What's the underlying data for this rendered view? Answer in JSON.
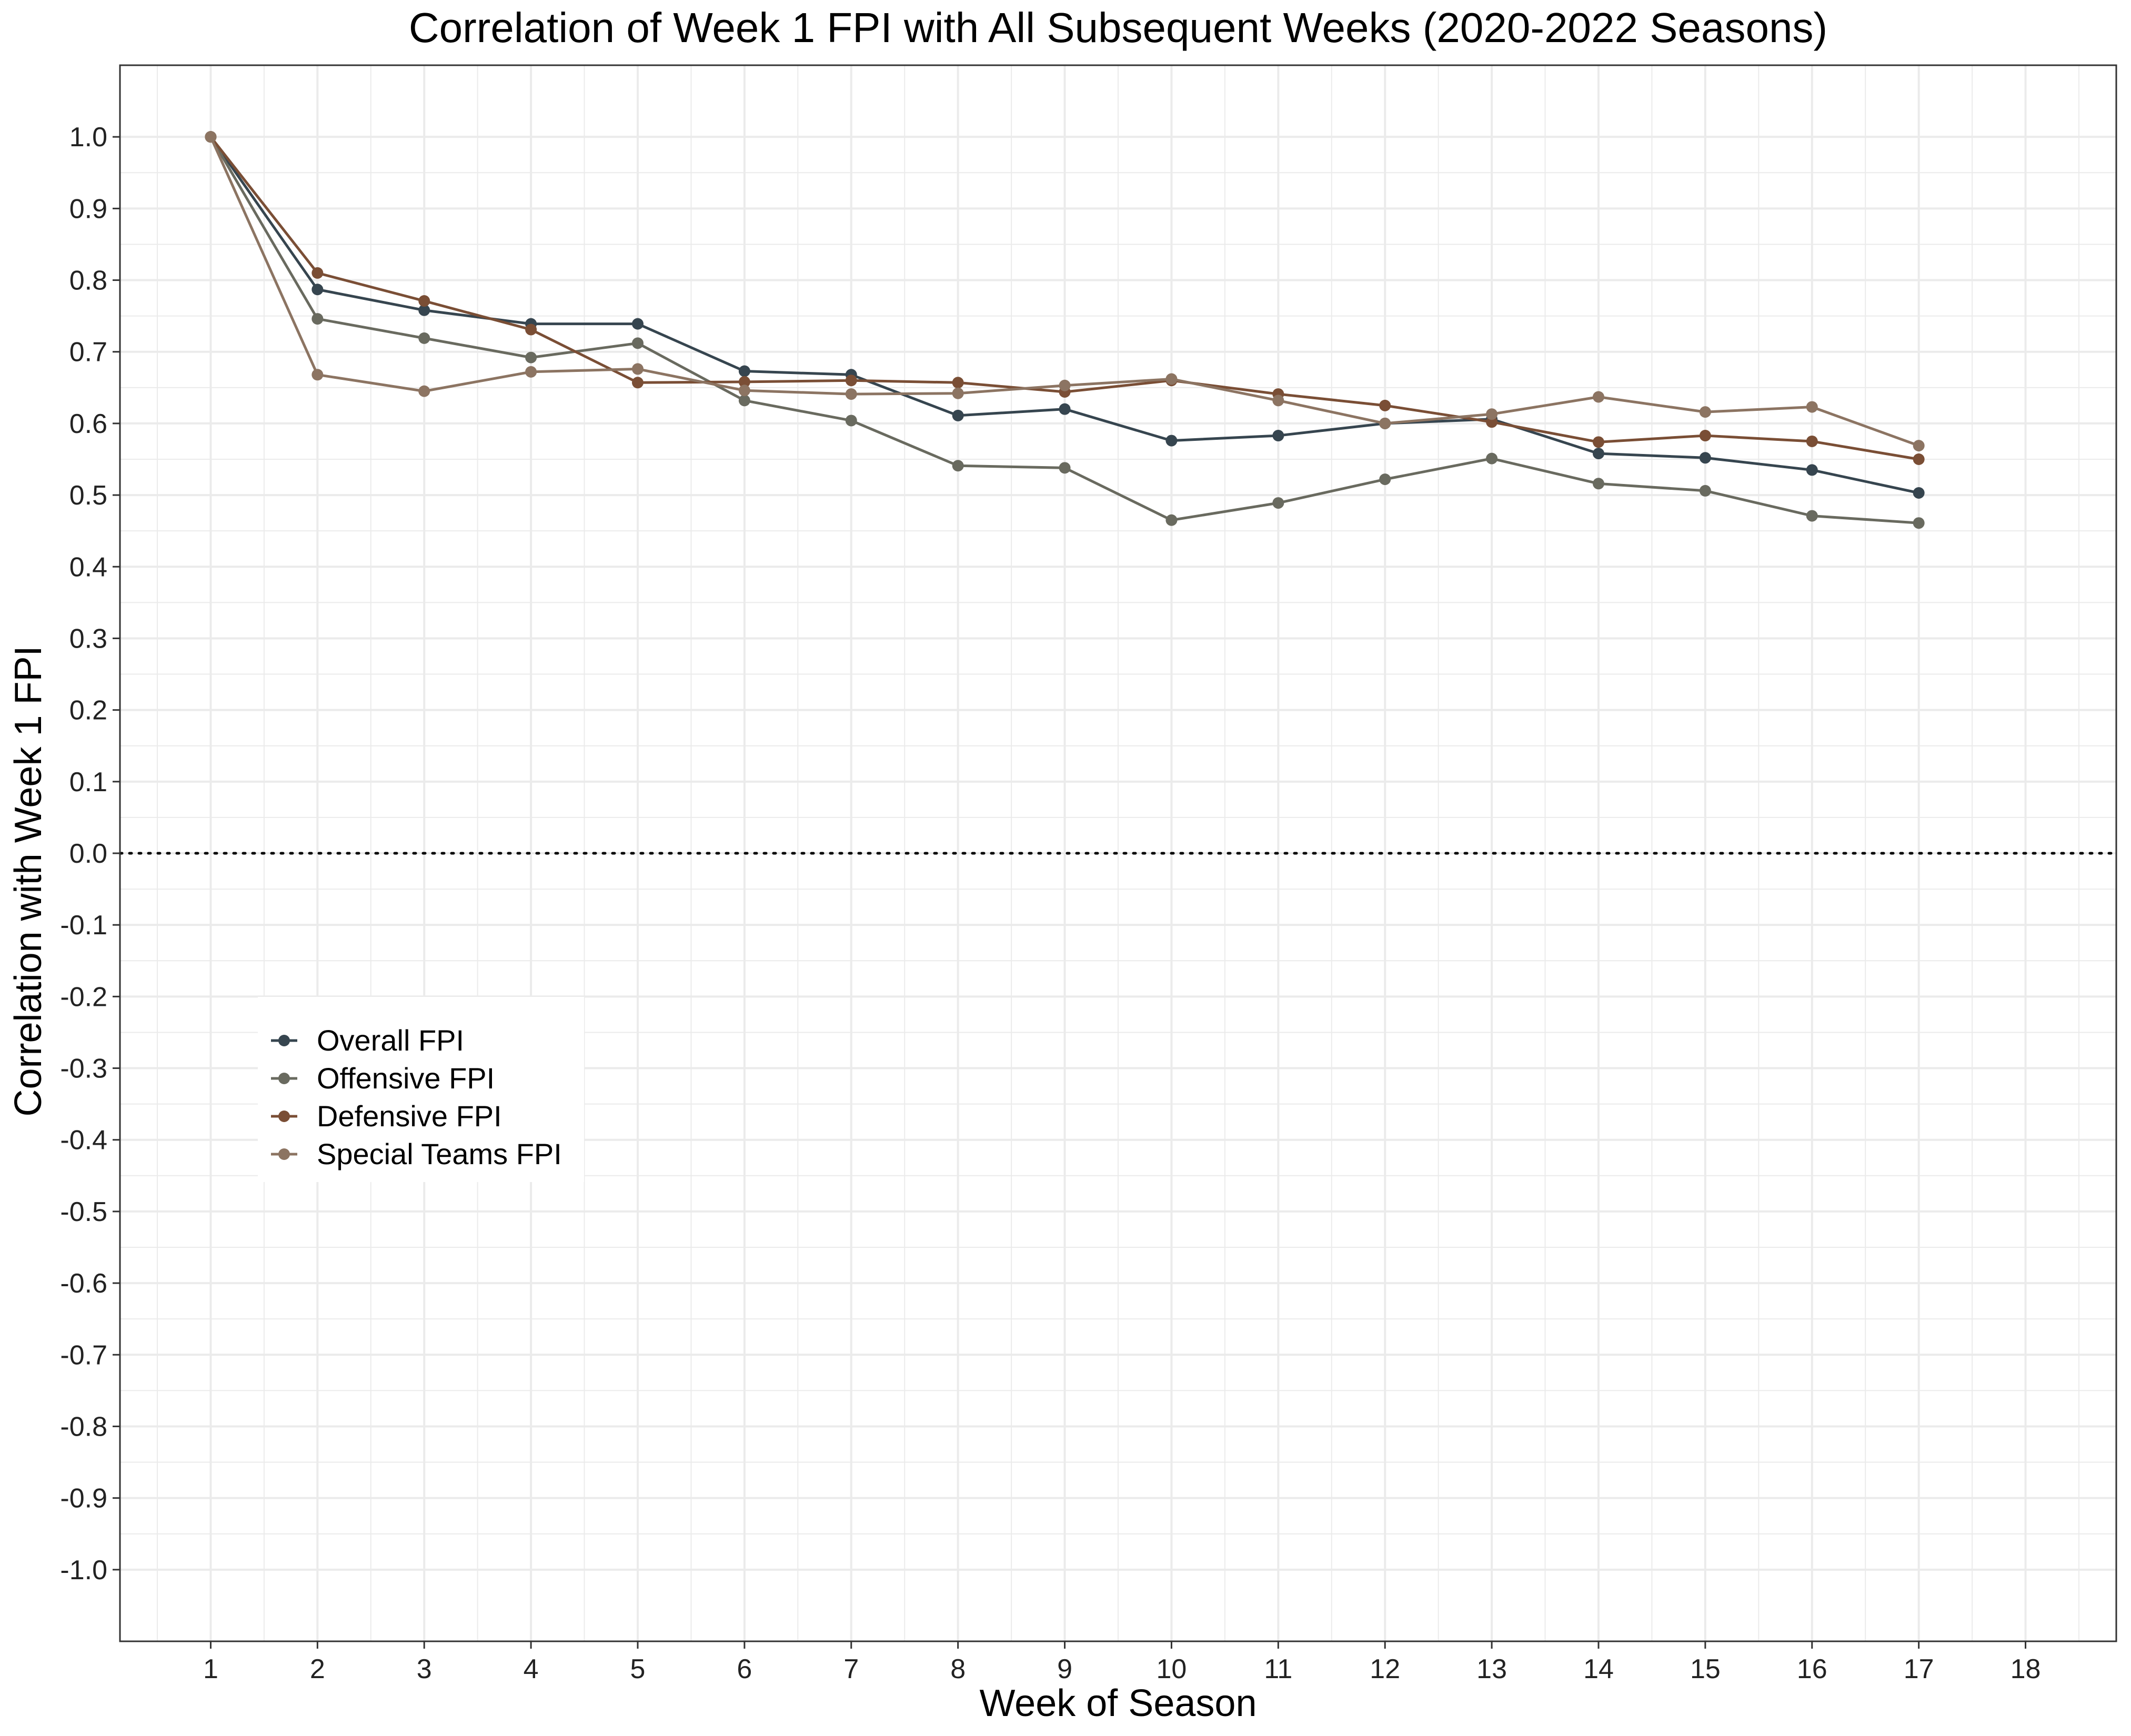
{
  "chart_data": {
    "type": "line",
    "title": "Correlation of Week 1 FPI with All Subsequent Weeks (2020-2022 Seasons)",
    "xlabel": "Week of Season",
    "ylabel": "Correlation with Week 1 FPI",
    "xlim": [
      0.15,
      18.85
    ],
    "ylim": [
      -1.1,
      1.1
    ],
    "x_ticks": [
      1,
      2,
      3,
      4,
      5,
      6,
      7,
      8,
      9,
      10,
      11,
      12,
      13,
      14,
      15,
      16,
      17,
      18
    ],
    "y_ticks": [
      1.0,
      0.9,
      0.8,
      0.7,
      0.6,
      0.5,
      0.4,
      0.3,
      0.2,
      0.1,
      0.0,
      -0.1,
      -0.2,
      -0.3,
      -0.4,
      -0.5,
      -0.6,
      -0.7,
      -0.8,
      -0.9,
      -1.0
    ],
    "y_tick_labels": [
      "1.0",
      "0.9",
      "0.8",
      "0.7",
      "0.6",
      "0.5",
      "0.4",
      "0.3",
      "0.2",
      "0.1",
      "0.0",
      "-0.1",
      "-0.2",
      "-0.3",
      "-0.4",
      "-0.5",
      "-0.6",
      "-0.7",
      "-0.8",
      "-0.9",
      "-1.0"
    ],
    "grid": true,
    "reference_line": {
      "y": 0.0,
      "style": "dotted"
    },
    "legend": {
      "placement": "lower-left inside plot"
    },
    "series": [
      {
        "name": "Overall FPI",
        "color": "#36454F",
        "x": [
          1,
          2,
          3,
          4,
          5,
          6,
          7,
          8,
          9,
          10,
          11,
          12,
          13,
          14,
          15,
          16,
          17
        ],
        "values": [
          1.0,
          0.787,
          0.758,
          0.739,
          0.739,
          0.673,
          0.668,
          0.611,
          0.62,
          0.576,
          0.583,
          0.6,
          0.606,
          0.558,
          0.552,
          0.535,
          0.503
        ]
      },
      {
        "name": "Offensive FPI",
        "color": "#696A5F",
        "x": [
          1,
          2,
          3,
          4,
          5,
          6,
          7,
          8,
          9,
          10,
          11,
          12,
          13,
          14,
          15,
          16,
          17
        ],
        "values": [
          1.0,
          0.746,
          0.719,
          0.692,
          0.712,
          0.632,
          0.604,
          0.541,
          0.538,
          0.465,
          0.489,
          0.522,
          0.551,
          0.516,
          0.506,
          0.471,
          0.461
        ]
      },
      {
        "name": "Defensive FPI",
        "color": "#7A4E35",
        "x": [
          1,
          2,
          3,
          4,
          5,
          6,
          7,
          8,
          9,
          10,
          11,
          12,
          13,
          14,
          15,
          16,
          17
        ],
        "values": [
          1.0,
          0.81,
          0.771,
          0.731,
          0.657,
          0.658,
          0.66,
          0.657,
          0.644,
          0.66,
          0.641,
          0.625,
          0.602,
          0.574,
          0.583,
          0.575,
          0.55
        ]
      },
      {
        "name": "Special Teams FPI",
        "color": "#8C7462",
        "x": [
          1,
          2,
          3,
          4,
          5,
          6,
          7,
          8,
          9,
          10,
          11,
          12,
          13,
          14,
          15,
          16,
          17
        ],
        "values": [
          1.0,
          0.668,
          0.645,
          0.672,
          0.676,
          0.646,
          0.641,
          0.642,
          0.653,
          0.662,
          0.632,
          0.6,
          0.613,
          0.637,
          0.616,
          0.623,
          0.569
        ]
      }
    ]
  }
}
